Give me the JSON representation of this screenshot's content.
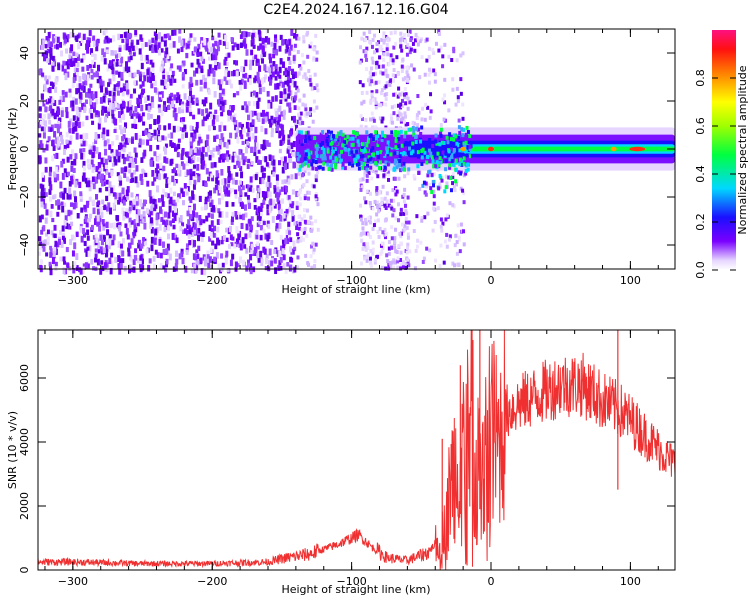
{
  "title": "C2E4.2024.167.12.16.G04",
  "chart_data": [
    {
      "type": "heatmap",
      "xlabel": "Height of straight line (km)",
      "ylabel": "Frequency (Hz)",
      "xlim": [
        -325,
        132
      ],
      "ylim": [
        -50,
        50
      ],
      "xticks": [
        -300,
        -200,
        -100,
        0,
        100
      ],
      "yticks": [
        -40,
        -20,
        0,
        20,
        40
      ],
      "colorbar": {
        "label": "Normalized spectral amplitude",
        "range": [
          0,
          1
        ],
        "ticks": [
          "0.0",
          "0.2",
          "0.4",
          "0.6",
          "0.8"
        ],
        "colormap": "rainbow"
      },
      "features": {
        "noise_region_x": [
          -325,
          -140
        ],
        "tone_band_x": [
          -140,
          132
        ],
        "tone_frequency_hz": 0,
        "peak_amplitude_positions_x": [
          -20,
          0,
          88,
          105
        ]
      }
    },
    {
      "type": "line",
      "xlabel": "Height of straight line (km)",
      "ylabel": "SNR (10 * v/v)",
      "xlim": [
        -325,
        132
      ],
      "ylim": [
        0,
        7500
      ],
      "xticks": [
        -300,
        -200,
        -100,
        0,
        100
      ],
      "yticks": [
        0,
        2000,
        4000,
        6000
      ],
      "series": [
        {
          "color": "#f03030",
          "envelope": {
            "x": [
              -325,
              -300,
              -250,
              -200,
              -160,
              -150,
              -130,
              -110,
              -95,
              -85,
              -75,
              -70,
              -60,
              -45,
              -35,
              -28,
              -22,
              -15,
              -10,
              -5,
              0,
              5,
              10,
              20,
              35,
              50,
              65,
              80,
              92,
              100,
              115,
              132
            ],
            "y": [
              250,
              250,
              200,
              200,
              250,
              350,
              500,
              800,
              1100,
              700,
              400,
              350,
              300,
              550,
              1100,
              3000,
              3500,
              5100,
              4200,
              3200,
              4700,
              3900,
              4900,
              5200,
              5500,
              5800,
              5800,
              5300,
              5000,
              4700,
              4000,
              3300
            ]
          },
          "spikes": [
            {
              "x": -8,
              "y": 7500
            },
            {
              "x": 91,
              "y": 7500
            },
            {
              "x": -22,
              "y": 6400
            },
            {
              "x": -35,
              "y": 4100
            }
          ]
        }
      ]
    }
  ]
}
